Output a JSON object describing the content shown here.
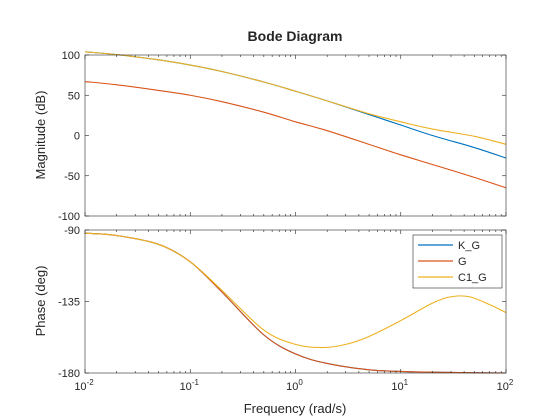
{
  "chart_data": [
    {
      "type": "line",
      "title": "Bode Diagram",
      "ylabel": "Magnitude (dB)",
      "xscale": "log",
      "xlim": [
        0.01,
        100
      ],
      "ylim": [
        -100,
        100
      ],
      "yticks": [
        100,
        50,
        0,
        -50,
        -100
      ],
      "grid": false,
      "series": [
        {
          "name": "K_G",
          "color": "#0072BD",
          "points": [
            [
              0.01,
              104
            ],
            [
              0.02,
              100.5
            ],
            [
              0.05,
              94
            ],
            [
              0.1,
              87.5
            ],
            [
              0.2,
              79.5
            ],
            [
              0.5,
              66.5
            ],
            [
              1,
              55
            ],
            [
              2,
              43
            ],
            [
              5,
              26
            ],
            [
              10,
              13
            ],
            [
              20,
              0
            ],
            [
              50,
              -15
            ],
            [
              100,
              -28
            ]
          ]
        },
        {
          "name": "G",
          "color": "#D95319",
          "points": [
            [
              0.01,
              67
            ],
            [
              0.02,
              63
            ],
            [
              0.05,
              56
            ],
            [
              0.1,
              50
            ],
            [
              0.2,
              42
            ],
            [
              0.5,
              29
            ],
            [
              1,
              17
            ],
            [
              2,
              6
            ],
            [
              5,
              -11
            ],
            [
              10,
              -24
            ],
            [
              20,
              -36
            ],
            [
              50,
              -52
            ],
            [
              100,
              -65
            ]
          ]
        },
        {
          "name": "C1_G",
          "color": "#EDB120",
          "points": [
            [
              0.01,
              104
            ],
            [
              0.02,
              100.5
            ],
            [
              0.05,
              94
            ],
            [
              0.1,
              87.5
            ],
            [
              0.2,
              79.5
            ],
            [
              0.5,
              66.5
            ],
            [
              1,
              55
            ],
            [
              2,
              43
            ],
            [
              5,
              27
            ],
            [
              10,
              17
            ],
            [
              20,
              8
            ],
            [
              50,
              -1
            ],
            [
              100,
              -11
            ]
          ]
        }
      ]
    },
    {
      "type": "line",
      "xlabel": "Frequency  (rad/s)",
      "ylabel": "Phase (deg)",
      "xscale": "log",
      "xlim": [
        0.01,
        100
      ],
      "ylim": [
        -180,
        -90
      ],
      "yticks": [
        -90,
        -135,
        -180
      ],
      "xticks": [
        0.01,
        0.1,
        1,
        10,
        100
      ],
      "xtick_labels": [
        [
          "10",
          "-2"
        ],
        [
          "10",
          "-1"
        ],
        [
          "10",
          "0"
        ],
        [
          "10",
          "1"
        ],
        [
          "10",
          "2"
        ]
      ],
      "legend": "top-right",
      "grid": false,
      "series": [
        {
          "name": "K_G",
          "color": "#0072BD",
          "points": [
            [
              0.01,
              -92
            ],
            [
              0.02,
              -93.5
            ],
            [
              0.05,
              -99
            ],
            [
              0.1,
              -110
            ],
            [
              0.2,
              -129
            ],
            [
              0.5,
              -156
            ],
            [
              1,
              -168
            ],
            [
              2,
              -174
            ],
            [
              5,
              -178
            ],
            [
              10,
              -179
            ],
            [
              20,
              -179.5
            ],
            [
              100,
              -180
            ]
          ]
        },
        {
          "name": "G",
          "color": "#D95319",
          "points": [
            [
              0.01,
              -92
            ],
            [
              0.02,
              -93.5
            ],
            [
              0.05,
              -99
            ],
            [
              0.1,
              -110
            ],
            [
              0.2,
              -129
            ],
            [
              0.5,
              -156
            ],
            [
              1,
              -168
            ],
            [
              2,
              -174
            ],
            [
              5,
              -178
            ],
            [
              10,
              -179
            ],
            [
              20,
              -179.5
            ],
            [
              100,
              -180
            ]
          ]
        },
        {
          "name": "C1_G",
          "color": "#EDB120",
          "points": [
            [
              0.01,
              -92
            ],
            [
              0.02,
              -93.5
            ],
            [
              0.05,
              -99
            ],
            [
              0.1,
              -110
            ],
            [
              0.2,
              -128
            ],
            [
              0.5,
              -153
            ],
            [
              1,
              -162
            ],
            [
              1.8,
              -164
            ],
            [
              3,
              -162
            ],
            [
              5,
              -157
            ],
            [
              10,
              -147
            ],
            [
              20,
              -136
            ],
            [
              30,
              -132
            ],
            [
              45,
              -132
            ],
            [
              70,
              -137
            ],
            [
              100,
              -142
            ]
          ]
        }
      ]
    }
  ]
}
